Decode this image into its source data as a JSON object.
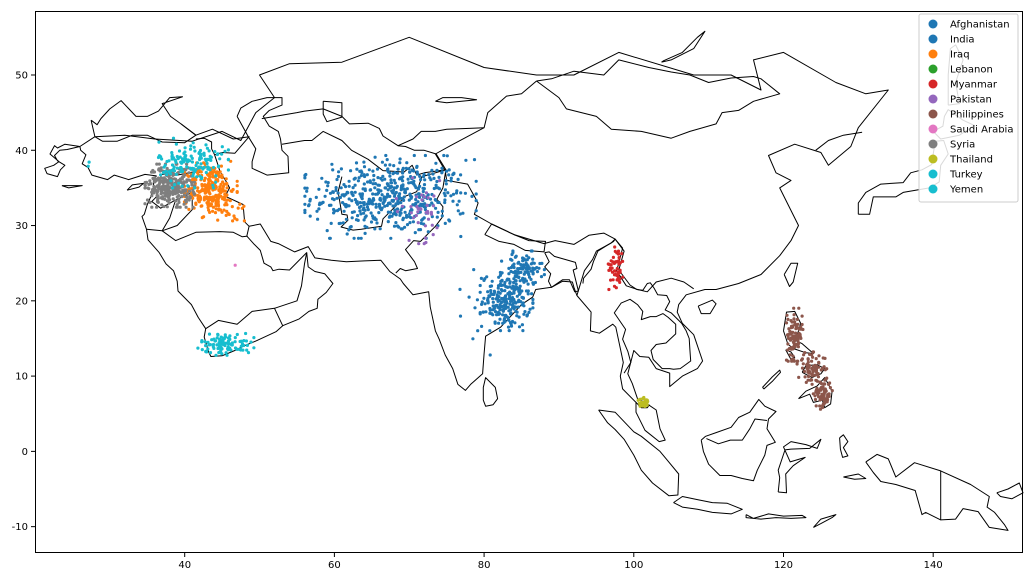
{
  "chart_data": {
    "type": "scatter",
    "map": "Asia / Middle East country boundaries",
    "xlim": [
      20,
      152
    ],
    "ylim": [
      -13.5,
      58.5
    ],
    "xticks": [
      "40",
      "60",
      "80",
      "100",
      "120",
      "140"
    ],
    "yticks": [
      "-10",
      "0",
      "10",
      "20",
      "30",
      "40",
      "50"
    ],
    "grid": false,
    "legend_position": "top-right",
    "series": [
      {
        "name": "Afghanistan",
        "color": "#1f77b4",
        "clusters": [
          {
            "cx": 67.5,
            "cy": 34.0,
            "sx": 5.0,
            "sy": 2.6,
            "n": 0
          }
        ]
      },
      {
        "name": "India",
        "color": "#1f77b4",
        "clusters": [
          {
            "cx": 67.5,
            "cy": 33.8,
            "sx": 5.2,
            "sy": 2.5,
            "n": 520
          },
          {
            "cx": 83.0,
            "cy": 20.0,
            "sx": 1.6,
            "sy": 1.8,
            "n": 220
          },
          {
            "cx": 85.2,
            "cy": 24.2,
            "sx": 1.3,
            "sy": 1.1,
            "n": 100
          },
          {
            "cx": 78.5,
            "cy": 20.5,
            "sx": 2.5,
            "sy": 3.5,
            "n": 14
          }
        ]
      },
      {
        "name": "Iraq",
        "color": "#ff7f0e",
        "clusters": [
          {
            "cx": 43.5,
            "cy": 34.8,
            "sx": 1.6,
            "sy": 1.7,
            "n": 260
          },
          {
            "cx": 46.5,
            "cy": 31.5,
            "sx": 1.2,
            "sy": 0.8,
            "n": 14
          }
        ]
      },
      {
        "name": "Lebanon",
        "color": "#2ca02c",
        "clusters": []
      },
      {
        "name": "Myanmar",
        "color": "#d62728",
        "clusters": [
          {
            "cx": 97.7,
            "cy": 24.8,
            "sx": 0.5,
            "sy": 1.5,
            "n": 50
          }
        ]
      },
      {
        "name": "Pakistan",
        "color": "#9467bd",
        "clusters": [
          {
            "cx": 71.5,
            "cy": 32.0,
            "sx": 1.8,
            "sy": 2.0,
            "n": 40
          }
        ]
      },
      {
        "name": "Philippines",
        "color": "#8c564b",
        "clusters": [
          {
            "cx": 121.5,
            "cy": 15.5,
            "sx": 0.5,
            "sy": 1.6,
            "n": 90
          },
          {
            "cx": 123.8,
            "cy": 11.0,
            "sx": 0.9,
            "sy": 1.0,
            "n": 80
          },
          {
            "cx": 125.2,
            "cy": 7.8,
            "sx": 0.6,
            "sy": 1.0,
            "n": 80
          }
        ]
      },
      {
        "name": "Saudi Arabia",
        "color": "#e377c2",
        "clusters": [
          {
            "cx": 46.8,
            "cy": 24.7,
            "sx": 0.05,
            "sy": 0.05,
            "n": 1
          }
        ]
      },
      {
        "name": "Syria",
        "color": "#7f7f7f",
        "clusters": [
          {
            "cx": 38.0,
            "cy": 35.3,
            "sx": 1.5,
            "sy": 1.3,
            "n": 300
          }
        ]
      },
      {
        "name": "Thailand",
        "color": "#bcbd22",
        "clusters": [
          {
            "cx": 101.3,
            "cy": 6.5,
            "sx": 0.35,
            "sy": 0.3,
            "n": 30
          }
        ]
      },
      {
        "name": "Turkey",
        "color": "#17becf",
        "clusters": [
          {
            "cx": 41.0,
            "cy": 38.3,
            "sx": 2.2,
            "sy": 1.5,
            "n": 150
          },
          {
            "cx": 27.5,
            "cy": 38.2,
            "sx": 0.3,
            "sy": 0.4,
            "n": 2
          }
        ]
      },
      {
        "name": "Yemen",
        "color": "#17becf",
        "clusters": [
          {
            "cx": 45.5,
            "cy": 14.3,
            "sx": 1.7,
            "sy": 0.7,
            "n": 100
          }
        ]
      }
    ]
  }
}
